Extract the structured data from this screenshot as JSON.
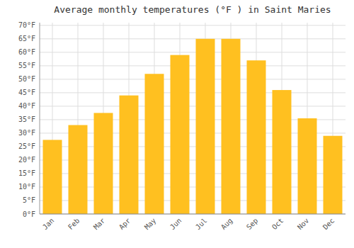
{
  "chart_data": {
    "type": "bar",
    "title": "Average monthly temperatures (°F ) in Saint Maries",
    "categories": [
      "Jan",
      "Feb",
      "Mar",
      "Apr",
      "May",
      "Jun",
      "Jul",
      "Aug",
      "Sep",
      "Oct",
      "Nov",
      "Dec"
    ],
    "values": [
      27.5,
      33,
      37.5,
      44,
      52,
      59,
      65,
      65,
      57,
      46,
      35.5,
      29
    ],
    "color": "#FFC020",
    "ylim": [
      0,
      71
    ],
    "yticks": [
      {
        "value": 0,
        "label": "0°F"
      },
      {
        "value": 5,
        "label": "5°F"
      },
      {
        "value": 10,
        "label": "10°F"
      },
      {
        "value": 15,
        "label": "15°F"
      },
      {
        "value": 20,
        "label": "20°F"
      },
      {
        "value": 25,
        "label": "25°F"
      },
      {
        "value": 30,
        "label": "30°F"
      },
      {
        "value": 35,
        "label": "35°F"
      },
      {
        "value": 40,
        "label": "40°F"
      },
      {
        "value": 45,
        "label": "45°F"
      },
      {
        "value": 50,
        "label": "50°F"
      },
      {
        "value": 55,
        "label": "55°F"
      },
      {
        "value": 60,
        "label": "60°F"
      },
      {
        "value": 65,
        "label": "65°F"
      },
      {
        "value": 70,
        "label": "70°F"
      }
    ],
    "grid": true
  }
}
